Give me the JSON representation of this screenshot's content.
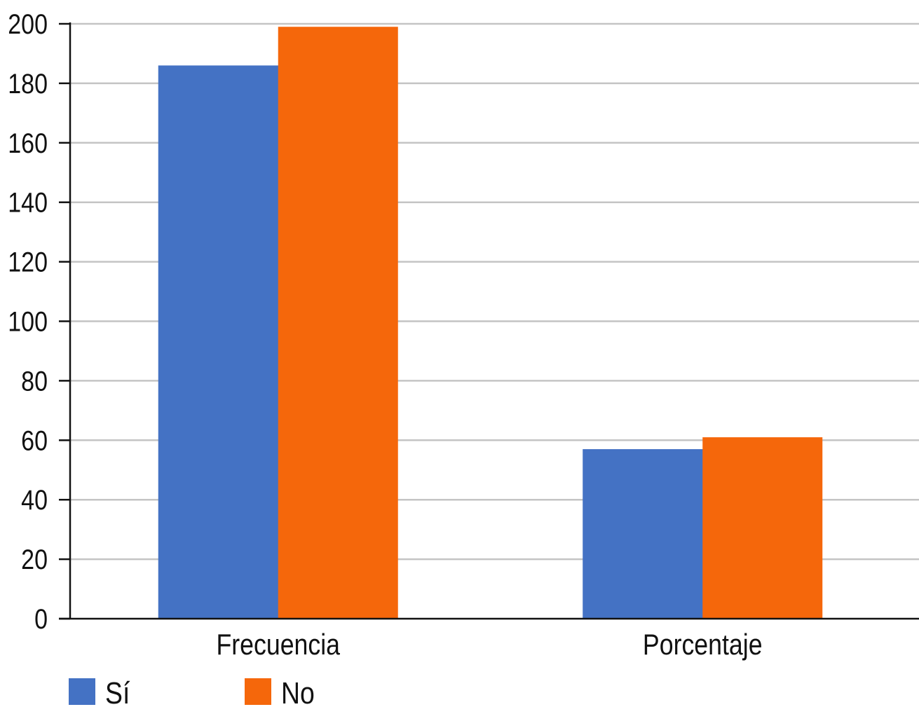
{
  "chart_data": {
    "type": "bar",
    "title": "",
    "xlabel": "",
    "ylabel": "",
    "categories": [
      "Frecuencia",
      "Porcentaje"
    ],
    "series": [
      {
        "name": "Sí",
        "values": [
          186,
          57
        ],
        "color": "#4472C4"
      },
      {
        "name": "No",
        "values": [
          199,
          61
        ],
        "color": "#F5670B"
      }
    ],
    "ylim": [
      0,
      200
    ],
    "yticks": [
      0,
      20,
      40,
      60,
      80,
      100,
      120,
      140,
      160,
      180,
      200
    ],
    "grid": true,
    "legend_position": "bottom-left"
  }
}
